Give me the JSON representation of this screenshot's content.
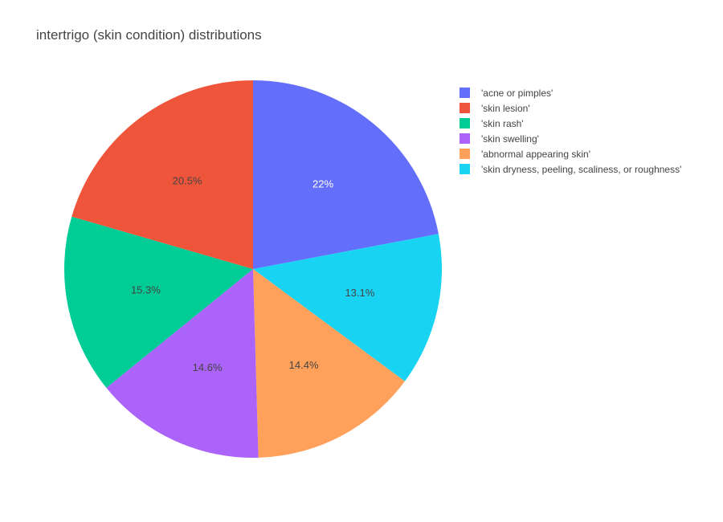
{
  "chart_data": {
    "type": "pie",
    "title": "intertrigo (skin condition) distributions",
    "slices": [
      {
        "label": "'acne or pimples'",
        "value": 22.0,
        "text": "22%",
        "color": "#636efa"
      },
      {
        "label": "'skin dryness, peeling, scaliness, or roughness'",
        "value": 13.1,
        "text": "13.1%",
        "color": "#19d3f3"
      },
      {
        "label": "'abnormal appearing skin'",
        "value": 14.4,
        "text": "14.4%",
        "color": "#ffa15a"
      },
      {
        "label": "'skin swelling'",
        "value": 14.6,
        "text": "14.6%",
        "color": "#ab63fa"
      },
      {
        "label": "'skin rash'",
        "value": 15.3,
        "text": "15.3%",
        "color": "#00cc96"
      },
      {
        "label": "'skin lesion'",
        "value": 20.5,
        "text": "20.5%",
        "color": "#ef553b"
      }
    ],
    "legend": [
      {
        "label": "'acne or pimples'",
        "color": "#636efa"
      },
      {
        "label": "'skin lesion'",
        "color": "#ef553b"
      },
      {
        "label": "'skin rash'",
        "color": "#00cc96"
      },
      {
        "label": "'skin swelling'",
        "color": "#ab63fa"
      },
      {
        "label": "'abnormal appearing skin'",
        "color": "#ffa15a"
      },
      {
        "label": "'skin dryness, peeling, scaliness, or roughness'",
        "color": "#19d3f3"
      }
    ],
    "legend_position": "top-right",
    "direction": "clockwise",
    "start": "top"
  }
}
